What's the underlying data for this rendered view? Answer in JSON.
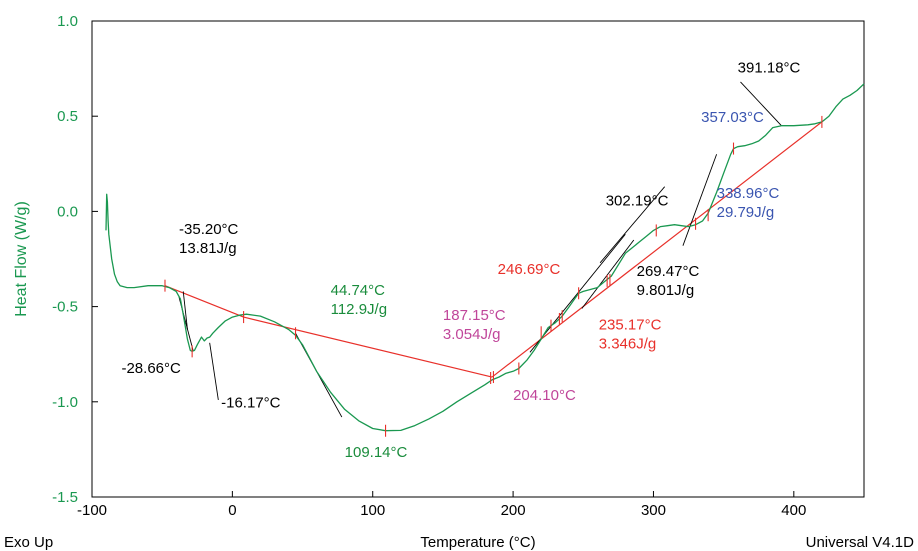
{
  "colors": {
    "curve": "#1a9850",
    "baseline": "#e8302a",
    "axis_label": "#1a9850",
    "black": "#000000",
    "green": "#1a8c3c",
    "red": "#e8302a",
    "magenta": "#c0469a",
    "blue": "#3a55b0"
  },
  "chart_data": {
    "type": "line",
    "xlabel": "Temperature (°C)",
    "ylabel": "Heat Flow (W/g)",
    "footer_left": "Exo Up",
    "footer_right": "Universal V4.1D",
    "xlim": [
      -100,
      450
    ],
    "ylim": [
      -1.5,
      1.0
    ],
    "x_ticks": [
      -100,
      0,
      100,
      200,
      300,
      400
    ],
    "x_tick_labels": [
      "-100",
      "0",
      "100",
      "200",
      "300",
      "400"
    ],
    "y_ticks": [
      1.0,
      0.5,
      0.0,
      -0.5,
      -1.0,
      -1.5
    ],
    "y_tick_labels": [
      "1.0",
      "0.5",
      "0.0",
      "-0.5",
      "-1.0",
      "-1.5"
    ],
    "grid": false,
    "series": [
      {
        "x": [
          -90,
          -89.5,
          -89,
          -88.5,
          -88,
          -86,
          -84,
          -82,
          -80,
          -75,
          -70,
          -60,
          -50,
          -45,
          -40,
          -37,
          -35,
          -32,
          -30,
          -28.66,
          -27,
          -25,
          -22,
          -20,
          -18,
          -16.17,
          -14,
          -10,
          -5,
          0,
          5,
          10,
          20,
          30,
          40,
          45,
          50,
          55,
          60,
          70,
          80,
          90,
          100,
          109.14,
          120,
          130,
          140,
          150,
          160,
          170,
          180,
          185,
          190,
          195,
          200,
          204.1,
          210,
          215,
          220,
          225,
          230,
          235,
          240,
          246.69,
          250,
          255,
          260,
          265,
          270,
          275,
          280,
          285,
          290,
          295,
          300,
          305,
          310,
          315,
          320,
          325,
          330,
          335,
          338.96,
          345,
          350,
          355,
          357.03,
          360,
          365,
          370,
          375,
          380,
          385,
          391.18,
          400,
          410,
          415,
          420,
          425,
          430,
          435,
          440,
          445,
          450
        ],
        "y": [
          -0.1,
          0.09,
          0.05,
          -0.05,
          -0.12,
          -0.25,
          -0.33,
          -0.37,
          -0.39,
          -0.4,
          -0.4,
          -0.39,
          -0.39,
          -0.4,
          -0.42,
          -0.46,
          -0.54,
          -0.67,
          -0.73,
          -0.735,
          -0.73,
          -0.7,
          -0.66,
          -0.68,
          -0.665,
          -0.66,
          -0.64,
          -0.61,
          -0.575,
          -0.555,
          -0.545,
          -0.54,
          -0.55,
          -0.58,
          -0.62,
          -0.65,
          -0.7,
          -0.77,
          -0.84,
          -0.95,
          -1.04,
          -1.1,
          -1.14,
          -1.152,
          -1.15,
          -1.125,
          -1.09,
          -1.05,
          -1.0,
          -0.955,
          -0.91,
          -0.885,
          -0.87,
          -0.85,
          -0.84,
          -0.825,
          -0.78,
          -0.73,
          -0.67,
          -0.61,
          -0.585,
          -0.55,
          -0.5,
          -0.43,
          -0.42,
          -0.41,
          -0.4,
          -0.37,
          -0.34,
          -0.28,
          -0.22,
          -0.19,
          -0.16,
          -0.13,
          -0.1,
          -0.08,
          -0.075,
          -0.07,
          -0.075,
          -0.08,
          -0.07,
          -0.05,
          -0.01,
          0.1,
          0.2,
          0.3,
          0.33,
          0.34,
          0.345,
          0.355,
          0.37,
          0.4,
          0.44,
          0.45,
          0.45,
          0.455,
          0.46,
          0.47,
          0.5,
          0.55,
          0.59,
          0.61,
          0.635,
          0.67
        ]
      }
    ],
    "baselines": [
      {
        "x": [
          -48,
          8
        ],
        "y": [
          -0.39,
          -0.555
        ]
      },
      {
        "x": [
          8,
          185
        ],
        "y": [
          -0.555,
          -0.87
        ]
      },
      {
        "x": [
          185,
          420
        ],
        "y": [
          -0.87,
          0.47
        ]
      }
    ],
    "markers": [
      {
        "x": -48,
        "y": -0.39
      },
      {
        "x": -28.66,
        "y": -0.735
      },
      {
        "x": 8,
        "y": -0.555
      },
      {
        "x": 45,
        "y": -0.64
      },
      {
        "x": 109.14,
        "y": -1.152
      },
      {
        "x": 184,
        "y": -0.875
      },
      {
        "x": 186,
        "y": -0.87
      },
      {
        "x": 204.1,
        "y": -0.825
      },
      {
        "x": 220,
        "y": -0.635
      },
      {
        "x": 227,
        "y": -0.6
      },
      {
        "x": 233,
        "y": -0.565
      },
      {
        "x": 235,
        "y": -0.55
      },
      {
        "x": 246.69,
        "y": -0.43
      },
      {
        "x": 267,
        "y": -0.365
      },
      {
        "x": 269,
        "y": -0.36
      },
      {
        "x": 302,
        "y": -0.1
      },
      {
        "x": 330,
        "y": -0.065
      },
      {
        "x": 338.96,
        "y": -0.02
      },
      {
        "x": 357.03,
        "y": 0.33
      },
      {
        "x": 420,
        "y": 0.47
      }
    ],
    "annotations": [
      {
        "lines": [
          "-35.20°C",
          "13.81J/g"
        ],
        "color": "black",
        "x": -38,
        "y": -0.12
      },
      {
        "lines": [
          "-28.66°C"
        ],
        "color": "black",
        "x": -79,
        "y": -0.85
      },
      {
        "lines": [
          "-16.17°C"
        ],
        "color": "black",
        "x": -8,
        "y": -1.03
      },
      {
        "lines": [
          "44.74°C",
          "112.9J/g"
        ],
        "color": "green",
        "x": 70,
        "y": -0.44
      },
      {
        "lines": [
          "109.14°C"
        ],
        "color": "green",
        "x": 80,
        "y": -1.29
      },
      {
        "lines": [
          "187.15°C",
          "3.054J/g"
        ],
        "color": "magenta",
        "x": 150,
        "y": -0.57
      },
      {
        "lines": [
          "204.10°C"
        ],
        "color": "magenta",
        "x": 200,
        "y": -0.99
      },
      {
        "lines": [
          "246.69°C"
        ],
        "color": "red",
        "x": 189,
        "y": -0.33
      },
      {
        "lines": [
          "235.17°C",
          "3.346J/g"
        ],
        "color": "red",
        "x": 261,
        "y": -0.62
      },
      {
        "lines": [
          "302.19°C"
        ],
        "color": "black",
        "x": 266,
        "y": 0.03
      },
      {
        "lines": [
          "269.47°C",
          "9.801J/g"
        ],
        "color": "black",
        "x": 288,
        "y": -0.34
      },
      {
        "lines": [
          "338.96°C",
          "29.79J/g"
        ],
        "color": "blue",
        "x": 345,
        "y": 0.07
      },
      {
        "lines": [
          "391.18°C"
        ],
        "color": "black",
        "x": 360,
        "y": 0.73
      },
      {
        "lines": [
          "357.03°C"
        ],
        "color": "blue",
        "x": 334,
        "y": 0.47
      }
    ],
    "leaders": [
      {
        "x": [
          -35,
          -32
        ],
        "y": [
          -0.42,
          -0.62
        ]
      },
      {
        "x": [
          -38,
          -28
        ],
        "y": [
          -0.45,
          -0.73
        ]
      },
      {
        "x": [
          -10,
          -16.17
        ],
        "y": [
          -0.99,
          -0.69
        ]
      },
      {
        "x": [
          45,
          78
        ],
        "y": [
          -0.64,
          -1.08
        ]
      },
      {
        "x": [
          212,
          280
        ],
        "y": [
          -0.74,
          -0.12
        ]
      },
      {
        "x": [
          249,
          286
        ],
        "y": [
          -0.51,
          -0.15
        ]
      },
      {
        "x": [
          262,
          308
        ],
        "y": [
          -0.27,
          0.13
        ]
      },
      {
        "x": [
          321,
          345
        ],
        "y": [
          -0.18,
          0.3
        ]
      },
      {
        "x": [
          362,
          391.18
        ],
        "y": [
          0.68,
          0.45
        ]
      }
    ]
  }
}
